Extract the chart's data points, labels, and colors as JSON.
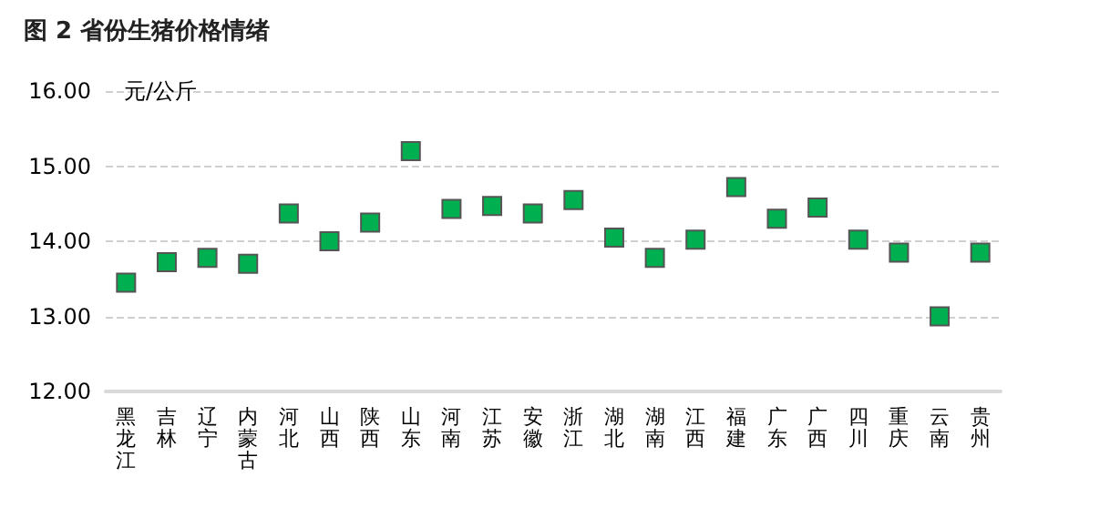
{
  "chart_data": {
    "type": "scatter",
    "title": "图 2 省份生猪价格情绪",
    "ylabel": "元/公斤",
    "categories": [
      "黑龙江",
      "吉林",
      "辽宁",
      "内蒙古",
      "河北",
      "山西",
      "陕西",
      "山东",
      "河南",
      "江苏",
      "安徽",
      "浙江",
      "湖北",
      "湖南",
      "江西",
      "福建",
      "广东",
      "广西",
      "四川",
      "重庆",
      "云南",
      "贵州"
    ],
    "series": [
      {
        "color": "#00b050",
        "values": [
          13.45,
          13.72,
          13.78,
          13.7,
          14.37,
          14.0,
          14.25,
          15.2,
          14.43,
          14.47,
          14.37,
          14.55,
          14.05,
          13.78,
          14.02,
          14.72,
          14.3,
          14.45,
          14.02,
          13.85,
          13.0,
          13.85
        ]
      }
    ],
    "ylim": [
      12,
      16
    ],
    "yticks": [
      {
        "value": 12,
        "label": "12.00"
      },
      {
        "value": 13,
        "label": "13.00"
      },
      {
        "value": 14,
        "label": "14.00"
      },
      {
        "value": 15,
        "label": "15.00"
      },
      {
        "value": 16,
        "label": "16.00"
      }
    ],
    "grid": "y",
    "marker": "square"
  }
}
